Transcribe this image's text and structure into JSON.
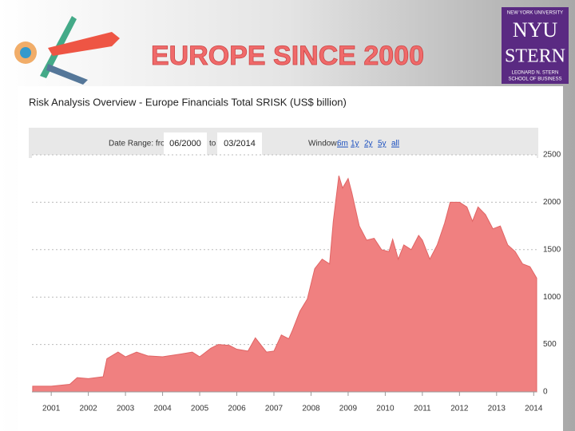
{
  "slide": {
    "title": "EUROPE SINCE 2000",
    "logo": {
      "top": "NEW YORK UNIVERSITY",
      "line1": "NYU",
      "line2": "STERN",
      "bottom1": "LEONARD N. STERN",
      "bottom2": "SCHOOL OF BUSINESS"
    }
  },
  "panel": {
    "date_range_label": "Date Range: from",
    "from": "06/2000",
    "to_label": "to",
    "to": "03/2014",
    "window_label": "Window:",
    "windows": [
      "6m",
      "1y",
      "2y",
      "5y",
      "all"
    ]
  },
  "chart_data": {
    "type": "area",
    "title": "Risk Analysis Overview - Europe Financials Total SRISK (US$ billion)",
    "color": "#f08080",
    "grid": true,
    "x": [
      2000.5,
      2001.0,
      2001.5,
      2001.7,
      2002.0,
      2002.4,
      2002.5,
      2002.8,
      2003.0,
      2003.3,
      2003.6,
      2004.0,
      2004.5,
      2004.8,
      2005.0,
      2005.3,
      2005.5,
      2005.8,
      2006.0,
      2006.3,
      2006.5,
      2006.8,
      2007.0,
      2007.2,
      2007.4,
      2007.5,
      2007.7,
      2007.9,
      2008.1,
      2008.3,
      2008.5,
      2008.6,
      2008.75,
      2008.85,
      2009.0,
      2009.1,
      2009.3,
      2009.5,
      2009.7,
      2009.9,
      2010.1,
      2010.2,
      2010.35,
      2010.5,
      2010.7,
      2010.9,
      2011.0,
      2011.2,
      2011.4,
      2011.6,
      2011.75,
      2012.0,
      2012.2,
      2012.35,
      2012.5,
      2012.7,
      2012.9,
      2013.1,
      2013.3,
      2013.5,
      2013.7,
      2013.9,
      2014.08
    ],
    "values": [
      60,
      60,
      80,
      150,
      140,
      160,
      350,
      420,
      370,
      420,
      380,
      370,
      400,
      420,
      370,
      460,
      500,
      490,
      450,
      430,
      570,
      420,
      430,
      600,
      560,
      650,
      850,
      980,
      1300,
      1400,
      1350,
      1800,
      2280,
      2150,
      2250,
      2100,
      1750,
      1600,
      1620,
      1500,
      1480,
      1610,
      1400,
      1550,
      1500,
      1650,
      1600,
      1400,
      1550,
      1780,
      2000,
      2000,
      1950,
      1800,
      1950,
      1870,
      1720,
      1750,
      1550,
      1480,
      1350,
      1320,
      1200
    ],
    "xlim": [
      2000.48,
      2014.08
    ],
    "xticks": [
      2001,
      2002,
      2003,
      2004,
      2005,
      2006,
      2007,
      2008,
      2009,
      2010,
      2011,
      2012,
      2013,
      2014
    ],
    "ylim": [
      0,
      2500
    ],
    "yticks": [
      0,
      500,
      1000,
      1500,
      2000,
      2500
    ]
  }
}
